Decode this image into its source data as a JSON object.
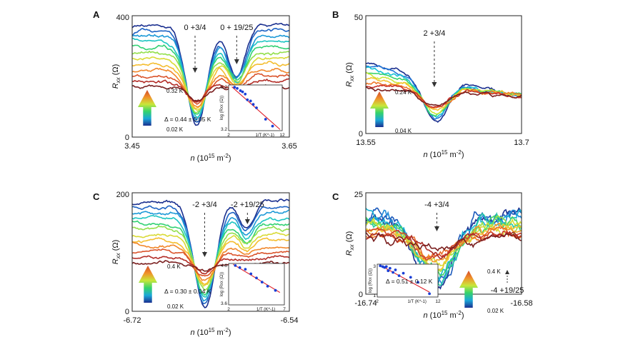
{
  "figure": {
    "temp_color_stops": [
      "#1a2f8f",
      "#1f77d8",
      "#19c2d6",
      "#35d36a",
      "#c9e63a",
      "#f4c430",
      "#f07a2a",
      "#c8322a",
      "#7a1f1f"
    ]
  },
  "chart_data": [
    {
      "panel": "A",
      "type": "line",
      "title": "",
      "xlabel": "n (10^15 m^-2)",
      "ylabel": "Rxx (Ω)",
      "xlim": [
        3.45,
        3.65
      ],
      "ylim": [
        0,
        400
      ],
      "x_tick_labels": [
        "3.45",
        "3.65"
      ],
      "y_tick_labels": [
        "0",
        "400"
      ],
      "annotations": [
        {
          "label": "0 +3/4",
          "x": 3.53
        },
        {
          "label": "0 + 19/25",
          "x": 3.583
        }
      ],
      "legend": {
        "high": "0.32 K",
        "low": "0.02 K"
      },
      "num_curves": 12,
      "series_shape": {
        "base_low_T": 370,
        "base_high_T": 165,
        "dips": [
          {
            "x": 3.532,
            "width": 0.013,
            "depth_low_T": 330,
            "depth_high_T": 40
          },
          {
            "x": 3.583,
            "width": 0.011,
            "depth_low_T": 170,
            "depth_high_T": 10
          }
        ],
        "seed": 11
      },
      "inset": {
        "type": "scatter",
        "xlabel": "1/T (K^-1)",
        "ylabel": "log (Rxx (Ω))",
        "xlim": [
          2,
          12
        ],
        "ylim": [
          3.2,
          5.2
        ],
        "x_tick_labels": [
          "2",
          "12"
        ],
        "y_tick_labels": [
          "5.2",
          "3.2"
        ],
        "x": [
          3.1,
          3.6,
          4.2,
          4.6,
          5.1,
          5.5,
          6.1,
          6.6,
          7.2,
          8.9,
          10.2
        ],
        "y": [
          5.1,
          5.05,
          4.95,
          4.9,
          4.8,
          4.55,
          4.5,
          4.35,
          4.2,
          3.7,
          3.4
        ],
        "fit": {
          "x": [
            2.6,
            11.6
          ],
          "y": [
            5.12,
            3.25
          ]
        },
        "label": "Δ = 0.44 ± 0.05 K"
      }
    },
    {
      "panel": "B",
      "type": "line",
      "title": "",
      "xlabel": "n (10^15 m^-2)",
      "ylabel": "Rxx (Ω)",
      "xlim": [
        13.55,
        13.7
      ],
      "ylim": [
        0,
        50
      ],
      "x_tick_labels": [
        "13.55",
        "13.7"
      ],
      "y_tick_labels": [
        "0",
        "50"
      ],
      "annotations": [
        {
          "label": "2 +3/4",
          "x": 13.616
        }
      ],
      "legend": {
        "high": "0.24 K",
        "low": "0.04 K"
      },
      "num_curves": 9,
      "series_shape": {
        "base_low_T": 30,
        "base_high_T": 19,
        "slope_low_T": -14,
        "slope_high_T": -3,
        "dips": [
          {
            "x": 13.617,
            "width": 0.012,
            "depth_low_T": 18,
            "depth_high_T": 6
          }
        ],
        "seed": 23
      }
    },
    {
      "panel": "C",
      "type": "line",
      "title": "",
      "xlabel": "n (10^15 m^-2)",
      "ylabel": "Rxx (Ω)",
      "xlim": [
        -6.72,
        -6.54
      ],
      "ylim": [
        0,
        200
      ],
      "x_tick_labels": [
        "-6.72",
        "-6.54"
      ],
      "y_tick_labels": [
        "0",
        "200"
      ],
      "annotations": [
        {
          "label": "-2 +3/4",
          "x": -6.637
        },
        {
          "label": "-2 +19/25",
          "x": -6.588
        }
      ],
      "legend": {
        "high": "0.4 K",
        "low": "0.02 K"
      },
      "num_curves": 12,
      "series_shape": {
        "base_low_T": 185,
        "base_high_T": 82,
        "dips": [
          {
            "x": -6.637,
            "width": 0.012,
            "depth_low_T": 178,
            "depth_high_T": 12
          },
          {
            "x": -6.589,
            "width": 0.008,
            "depth_low_T": 45,
            "depth_high_T": 2
          }
        ],
        "seed": 37
      },
      "inset": {
        "type": "scatter",
        "xlabel": "1/T (K^-1)",
        "ylabel": "log (Rxx (Ω))",
        "xlim": [
          2,
          7
        ],
        "ylim": [
          3.6,
          4.6
        ],
        "x_tick_labels": [
          "2",
          "7"
        ],
        "y_tick_labels": [
          "4.6",
          "3.6"
        ],
        "x": [
          2.6,
          3.0,
          3.5,
          4.0,
          4.5,
          5.0,
          5.5,
          6.2
        ],
        "y": [
          4.55,
          4.5,
          4.46,
          4.35,
          4.25,
          4.15,
          4.05,
          3.95
        ],
        "fit": {
          "x": [
            2.4,
            6.6
          ],
          "y": [
            4.58,
            3.9
          ]
        },
        "label": "Δ = 0.30 ± 0.04 K"
      }
    },
    {
      "panel": "C",
      "type": "line",
      "title": "",
      "xlabel": "n (10^15 m^-2)",
      "ylabel": "Rxx (Ω)",
      "xlim": [
        -16.74,
        -16.58
      ],
      "ylim": [
        0,
        25
      ],
      "x_tick_labels": [
        "-16.74",
        "-16.58"
      ],
      "y_tick_labels": [
        "0",
        "25"
      ],
      "annotations": [
        {
          "label": "-4 +3/4",
          "x": -16.667
        },
        {
          "label": "-4 +19/25",
          "x": -16.602
        }
      ],
      "legend": {
        "high": "0.4 K",
        "low": "0.02 K"
      },
      "num_curves": 14,
      "series_shape": {
        "base_low_T": 20,
        "base_high_T": 14,
        "dips": [
          {
            "x": -16.668,
            "width": 0.02,
            "depth_low_T": 18,
            "depth_high_T": 3
          }
        ],
        "noise_low_T": 3.0,
        "noise_high_T": 1.6,
        "seed": 53
      },
      "inset": {
        "type": "scatter",
        "xlabel": "1/T (K^-1)",
        "ylabel": "log (Rxx (Ω))",
        "xlim": [
          2,
          12
        ],
        "ylim": [
          1,
          3
        ],
        "x_tick_labels": [
          "2",
          "12"
        ],
        "y_tick_labels": [
          "3",
          "1"
        ],
        "x": [
          2.5,
          2.9,
          3.2,
          3.5,
          3.8,
          4.1,
          4.6,
          5.0,
          5.6,
          6.3,
          7.5,
          8.7,
          10.6
        ],
        "y": [
          2.9,
          2.85,
          2.8,
          2.85,
          2.6,
          2.75,
          2.5,
          2.65,
          2.3,
          2.45,
          2.2,
          1.9,
          1.2
        ],
        "fit": {
          "x": [
            2.4,
            10.6
          ],
          "y": [
            2.95,
            1.3
          ]
        },
        "label": "Δ = 0.51 ± 0.12 K"
      }
    }
  ]
}
